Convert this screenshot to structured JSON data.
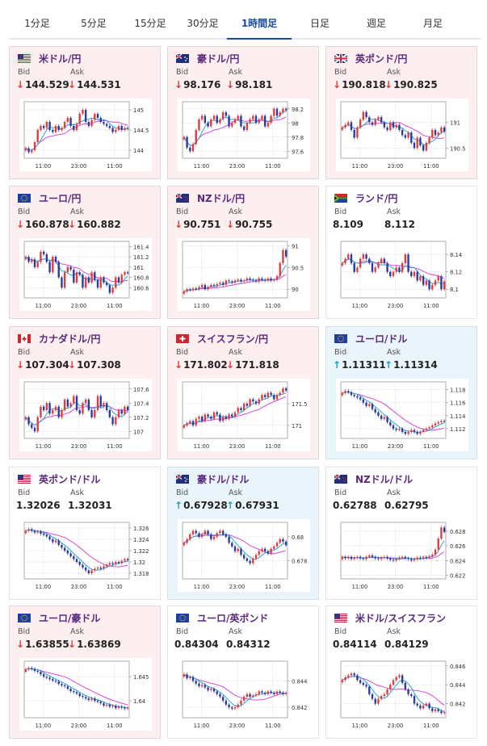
{
  "tabs": [
    "1分足",
    "5分足",
    "15分足",
    "30分足",
    "1時間足",
    "日足",
    "週足",
    "月足"
  ],
  "active_tab": "1時間足",
  "labels": {
    "bid": "Bid",
    "ask": "Ask"
  },
  "colors": {
    "down_arrow": "#e03b3b",
    "up_arrow": "#1d9fbf",
    "candle_up": "#e23b3b",
    "candle_down": "#2a3aa0",
    "ma_short": "#2aa7d8",
    "ma_long": "#d84ad8"
  },
  "cards": [
    {
      "pair": "米ドル/円",
      "flag": "us",
      "trend": "down",
      "bid": "144.529",
      "ask": "144.531",
      "ticks": [
        "145",
        "144.5",
        "144"
      ],
      "xticks": [
        "11:00",
        "23:00",
        "11:00"
      ],
      "chart_data": {
        "type": "candlestick",
        "ylim": [
          143.8,
          145.2
        ],
        "close": [
          144.05,
          143.95,
          144.0,
          144.2,
          144.5,
          144.6,
          144.55,
          144.7,
          144.5,
          144.45,
          144.6,
          144.5,
          144.55,
          144.7,
          144.8,
          144.6,
          144.5,
          144.65,
          144.9,
          145.0,
          144.7,
          144.6,
          144.75,
          144.9,
          144.8,
          144.7,
          144.65,
          144.6,
          144.55,
          144.45,
          144.5,
          144.6,
          144.5,
          144.55,
          144.53
        ]
      }
    },
    {
      "pair": "豪ドル/円",
      "flag": "au",
      "trend": "down",
      "bid": "98.176",
      "ask": "98.181",
      "ticks": [
        "98.2",
        "98",
        "97.8",
        "97.6"
      ],
      "xticks": [
        "11:00",
        "23:00",
        "11:00"
      ],
      "chart_data": {
        "type": "candlestick",
        "ylim": [
          97.5,
          98.3
        ],
        "close": [
          97.8,
          97.65,
          97.6,
          97.7,
          97.9,
          98.05,
          98.1,
          98.0,
          97.95,
          98.05,
          98.1,
          98.0,
          98.05,
          98.15,
          98.1,
          97.95,
          98.0,
          98.05,
          98.1,
          97.95,
          97.9,
          98.0,
          98.05,
          98.1,
          98.0,
          98.05,
          98.1,
          97.95,
          98.0,
          98.1,
          98.2,
          98.1,
          98.15,
          98.2,
          98.18
        ]
      }
    },
    {
      "pair": "英ポンド/円",
      "flag": "uk",
      "trend": "down",
      "bid": "190.818",
      "ask": "190.825",
      "ticks": [
        "191",
        "190.5"
      ],
      "xticks": [
        "11:00",
        "23:00",
        "11:00"
      ],
      "chart_data": {
        "type": "candlestick",
        "ylim": [
          190.3,
          191.4
        ],
        "close": [
          190.9,
          190.95,
          191.0,
          190.85,
          190.7,
          190.9,
          191.05,
          191.2,
          191.1,
          191.0,
          190.95,
          191.05,
          191.1,
          191.0,
          190.9,
          190.85,
          191.0,
          190.9,
          190.95,
          190.85,
          190.75,
          190.7,
          190.8,
          190.6,
          190.5,
          190.7,
          190.55,
          190.45,
          190.6,
          190.7,
          190.85,
          190.75,
          190.8,
          190.9,
          190.82
        ]
      }
    },
    {
      "pair": "ユーロ/円",
      "flag": "eu",
      "trend": "down",
      "bid": "160.878",
      "ask": "160.882",
      "ticks": [
        "161.4",
        "161.2",
        "161",
        "160.8",
        "160.6"
      ],
      "xticks": [
        "11:00",
        "23:00",
        "11:00"
      ],
      "chart_data": {
        "type": "candlestick",
        "ylim": [
          160.4,
          161.5
        ],
        "close": [
          161.2,
          161.1,
          161.15,
          161.0,
          161.1,
          161.3,
          161.25,
          161.1,
          160.9,
          161.2,
          161.1,
          160.8,
          160.6,
          160.9,
          161.0,
          160.95,
          160.7,
          160.9,
          160.85,
          160.6,
          160.8,
          160.7,
          160.9,
          160.75,
          160.6,
          160.8,
          160.7,
          160.65,
          160.5,
          160.6,
          160.8,
          160.7,
          160.85,
          160.9,
          160.88
        ]
      }
    },
    {
      "pair": "NZドル/円",
      "flag": "nz",
      "trend": "down",
      "bid": "90.751",
      "ask": "90.755",
      "ticks": [
        "91",
        "90.5",
        "90"
      ],
      "xticks": [
        "11:00",
        "23:00",
        "11:00"
      ],
      "chart_data": {
        "type": "candlestick",
        "ylim": [
          89.8,
          91.1
        ],
        "close": [
          89.95,
          90.0,
          89.98,
          90.02,
          90.0,
          90.05,
          90.1,
          90.0,
          90.05,
          90.1,
          90.08,
          90.12,
          90.15,
          90.1,
          90.2,
          90.18,
          90.15,
          90.2,
          90.22,
          90.18,
          90.2,
          90.25,
          90.22,
          90.2,
          90.18,
          90.25,
          90.22,
          90.2,
          90.25,
          90.2,
          90.22,
          90.3,
          90.6,
          90.9,
          90.75
        ]
      }
    },
    {
      "pair": "ランド/円",
      "flag": "za",
      "trend": "flat",
      "bid": "8.109",
      "ask": "8.112",
      "ticks": [
        "8.14",
        "8.12",
        "8.1"
      ],
      "xticks": [
        "11:00",
        "23:00",
        "11:00"
      ],
      "chart_data": {
        "type": "candlestick",
        "ylim": [
          8.09,
          8.155
        ],
        "close": [
          8.13,
          8.135,
          8.14,
          8.13,
          8.12,
          8.125,
          8.135,
          8.14,
          8.135,
          8.13,
          8.12,
          8.125,
          8.13,
          8.135,
          8.13,
          8.12,
          8.115,
          8.12,
          8.125,
          8.12,
          8.13,
          8.14,
          8.12,
          8.115,
          8.12,
          8.11,
          8.115,
          8.105,
          8.11,
          8.1,
          8.105,
          8.11,
          8.115,
          8.1,
          8.109
        ]
      }
    },
    {
      "pair": "カナダドル/円",
      "flag": "ca",
      "trend": "down",
      "bid": "107.304",
      "ask": "107.308",
      "ticks": [
        "107.6",
        "107.4",
        "107.2",
        "107"
      ],
      "xticks": [
        "11:00",
        "23:00",
        "11:00"
      ],
      "chart_data": {
        "type": "candlestick",
        "ylim": [
          106.9,
          107.7
        ],
        "close": [
          107.2,
          107.1,
          107.05,
          107.0,
          107.2,
          107.35,
          107.3,
          107.4,
          107.25,
          107.3,
          107.35,
          107.2,
          107.3,
          107.45,
          107.35,
          107.4,
          107.5,
          107.3,
          107.25,
          107.4,
          107.45,
          107.3,
          107.2,
          107.3,
          107.5,
          107.35,
          107.4,
          107.3,
          107.2,
          107.1,
          107.2,
          107.3,
          107.25,
          107.35,
          107.3
        ]
      }
    },
    {
      "pair": "スイスフラン/円",
      "flag": "ch",
      "trend": "down",
      "bid": "171.802",
      "ask": "171.818",
      "ticks": [
        "171.5",
        "171"
      ],
      "xticks": [
        "11:00",
        "23:00",
        "11:00"
      ],
      "chart_data": {
        "type": "candlestick",
        "ylim": [
          170.7,
          172.0
        ],
        "close": [
          171.0,
          171.05,
          171.1,
          171.0,
          171.15,
          171.2,
          171.1,
          171.25,
          171.2,
          171.15,
          171.3,
          171.25,
          171.1,
          171.2,
          171.15,
          171.25,
          171.2,
          171.3,
          171.4,
          171.35,
          171.5,
          171.45,
          171.6,
          171.55,
          171.5,
          171.6,
          171.7,
          171.65,
          171.75,
          171.7,
          171.6,
          171.7,
          171.75,
          171.85,
          171.8
        ]
      }
    },
    {
      "pair": "ユーロ/ドル",
      "flag": "eu",
      "trend": "up",
      "bid": "1.11311",
      "ask": "1.11314",
      "ticks": [
        "1.118",
        "1.116",
        "1.114",
        "1.112"
      ],
      "xticks": [
        "11:00",
        "23:00",
        "11:00"
      ],
      "chart_data": {
        "type": "candlestick",
        "ylim": [
          1.1105,
          1.1192
        ],
        "close": [
          1.1175,
          1.1178,
          1.1176,
          1.1172,
          1.117,
          1.1168,
          1.1165,
          1.116,
          1.1155,
          1.1158,
          1.115,
          1.1145,
          1.114,
          1.1135,
          1.1138,
          1.113,
          1.1125,
          1.112,
          1.1118,
          1.112,
          1.1115,
          1.1112,
          1.1115,
          1.1118,
          1.1115,
          1.1112,
          1.1115,
          1.1118,
          1.112,
          1.1122,
          1.1125,
          1.1128,
          1.113,
          1.1132,
          1.1131
        ]
      }
    },
    {
      "pair": "英ポンド/ドル",
      "flag": "us",
      "trend": "flat",
      "bid": "1.32026",
      "ask": "1.32031",
      "ticks": [
        "1.326",
        "1.324",
        "1.322",
        "1.32",
        "1.318"
      ],
      "xticks": [
        "11:00",
        "23:00",
        "11:00"
      ],
      "chart_data": {
        "type": "candlestick",
        "ylim": [
          1.317,
          1.327
        ],
        "close": [
          1.3255,
          1.3258,
          1.3255,
          1.3252,
          1.3254,
          1.325,
          1.3248,
          1.3245,
          1.324,
          1.3235,
          1.3238,
          1.323,
          1.3225,
          1.322,
          1.3215,
          1.321,
          1.3205,
          1.32,
          1.3195,
          1.319,
          1.3185,
          1.318,
          1.3185,
          1.3188,
          1.319,
          1.3188,
          1.3192,
          1.3195,
          1.3198,
          1.3196,
          1.32,
          1.3198,
          1.3202,
          1.3205,
          1.3203
        ]
      }
    },
    {
      "pair": "豪ドル/ドル",
      "flag": "au",
      "trend": "up",
      "bid": "0.67928",
      "ask": "0.67931",
      "ticks": [
        "0.68",
        "0.678"
      ],
      "xticks": [
        "11:00",
        "23:00",
        "11:00"
      ],
      "chart_data": {
        "type": "candlestick",
        "ylim": [
          0.6765,
          0.6812
        ],
        "close": [
          0.6795,
          0.6798,
          0.6802,
          0.6805,
          0.6803,
          0.68,
          0.6802,
          0.6805,
          0.6802,
          0.6798,
          0.68,
          0.6803,
          0.6805,
          0.6802,
          0.68,
          0.6795,
          0.6792,
          0.6788,
          0.679,
          0.6785,
          0.6782,
          0.678,
          0.6778,
          0.6782,
          0.6785,
          0.6788,
          0.679,
          0.6788,
          0.6786,
          0.679,
          0.6792,
          0.6795,
          0.6798,
          0.6796,
          0.6793
        ]
      }
    },
    {
      "pair": "NZドル/ドル",
      "flag": "nz",
      "trend": "flat",
      "bid": "0.62788",
      "ask": "0.62795",
      "ticks": [
        "0.628",
        "0.626",
        "0.624",
        "0.622"
      ],
      "xticks": [
        "11:00",
        "23:00",
        "11:00"
      ],
      "chart_data": {
        "type": "candlestick",
        "ylim": [
          0.6215,
          0.6292
        ],
        "close": [
          0.6245,
          0.6243,
          0.6245,
          0.6242,
          0.6244,
          0.6245,
          0.6243,
          0.6242,
          0.6245,
          0.6247,
          0.6245,
          0.6243,
          0.6242,
          0.6244,
          0.6245,
          0.6243,
          0.6241,
          0.624,
          0.6242,
          0.6244,
          0.6245,
          0.6243,
          0.6242,
          0.624,
          0.6242,
          0.6244,
          0.6243,
          0.6245,
          0.6244,
          0.6246,
          0.6248,
          0.6255,
          0.627,
          0.6285,
          0.6279
        ]
      }
    },
    {
      "pair": "ユーロ/豪ドル",
      "flag": "eu",
      "trend": "down",
      "bid": "1.63855",
      "ask": "1.63869",
      "ticks": [
        "1.645",
        "1.64"
      ],
      "xticks": [
        "11:00",
        "23:00",
        "11:00"
      ],
      "chart_data": {
        "type": "candlestick",
        "ylim": [
          1.6365,
          1.6482
        ],
        "close": [
          1.6465,
          1.6468,
          1.6466,
          1.6462,
          1.646,
          1.6455,
          1.645,
          1.6448,
          1.6445,
          1.6442,
          1.644,
          1.6435,
          1.6432,
          1.643,
          1.6425,
          1.642,
          1.6418,
          1.6415,
          1.641,
          1.6408,
          1.6405,
          1.6402,
          1.6405,
          1.64,
          1.6398,
          1.6395,
          1.639,
          1.6392,
          1.6388,
          1.639,
          1.6385,
          1.6388,
          1.6386,
          1.6384,
          1.6386
        ]
      }
    },
    {
      "pair": "ユーロ/英ポンド",
      "flag": "eu",
      "trend": "flat",
      "bid": "0.84304",
      "ask": "0.84312",
      "ticks": [
        "0.844",
        "0.842"
      ],
      "xticks": [
        "11:00",
        "23:00",
        "11:00"
      ],
      "chart_data": {
        "type": "candlestick",
        "ylim": [
          0.8412,
          0.8455
        ],
        "close": [
          0.8445,
          0.8442,
          0.8443,
          0.844,
          0.8438,
          0.8436,
          0.8437,
          0.8435,
          0.8433,
          0.8434,
          0.8432,
          0.843,
          0.8428,
          0.8425,
          0.8422,
          0.842,
          0.8419,
          0.842,
          0.8422,
          0.8425,
          0.8428,
          0.843,
          0.8428,
          0.8429,
          0.843,
          0.8432,
          0.8431,
          0.843,
          0.8432,
          0.8431,
          0.843,
          0.8432,
          0.8431,
          0.843,
          0.8431
        ]
      }
    },
    {
      "pair": "米ドル/スイスフラン",
      "flag": "us",
      "trend": "flat",
      "bid": "0.84114",
      "ask": "0.84129",
      "ticks": [
        "0.846",
        "0.844",
        "0.842"
      ],
      "xticks": [
        "11:00",
        "23:00",
        "11:00"
      ],
      "chart_data": {
        "type": "candlestick",
        "ylim": [
          0.8405,
          0.8465
        ],
        "close": [
          0.8445,
          0.8448,
          0.845,
          0.8452,
          0.845,
          0.8445,
          0.8442,
          0.844,
          0.8438,
          0.843,
          0.8425,
          0.842,
          0.8425,
          0.8428,
          0.843,
          0.8435,
          0.844,
          0.8445,
          0.8448,
          0.845,
          0.8442,
          0.8435,
          0.843,
          0.8428,
          0.842,
          0.8418,
          0.8415,
          0.8418,
          0.842,
          0.8415,
          0.8412,
          0.8414,
          0.8412,
          0.841,
          0.8411
        ]
      }
    }
  ]
}
